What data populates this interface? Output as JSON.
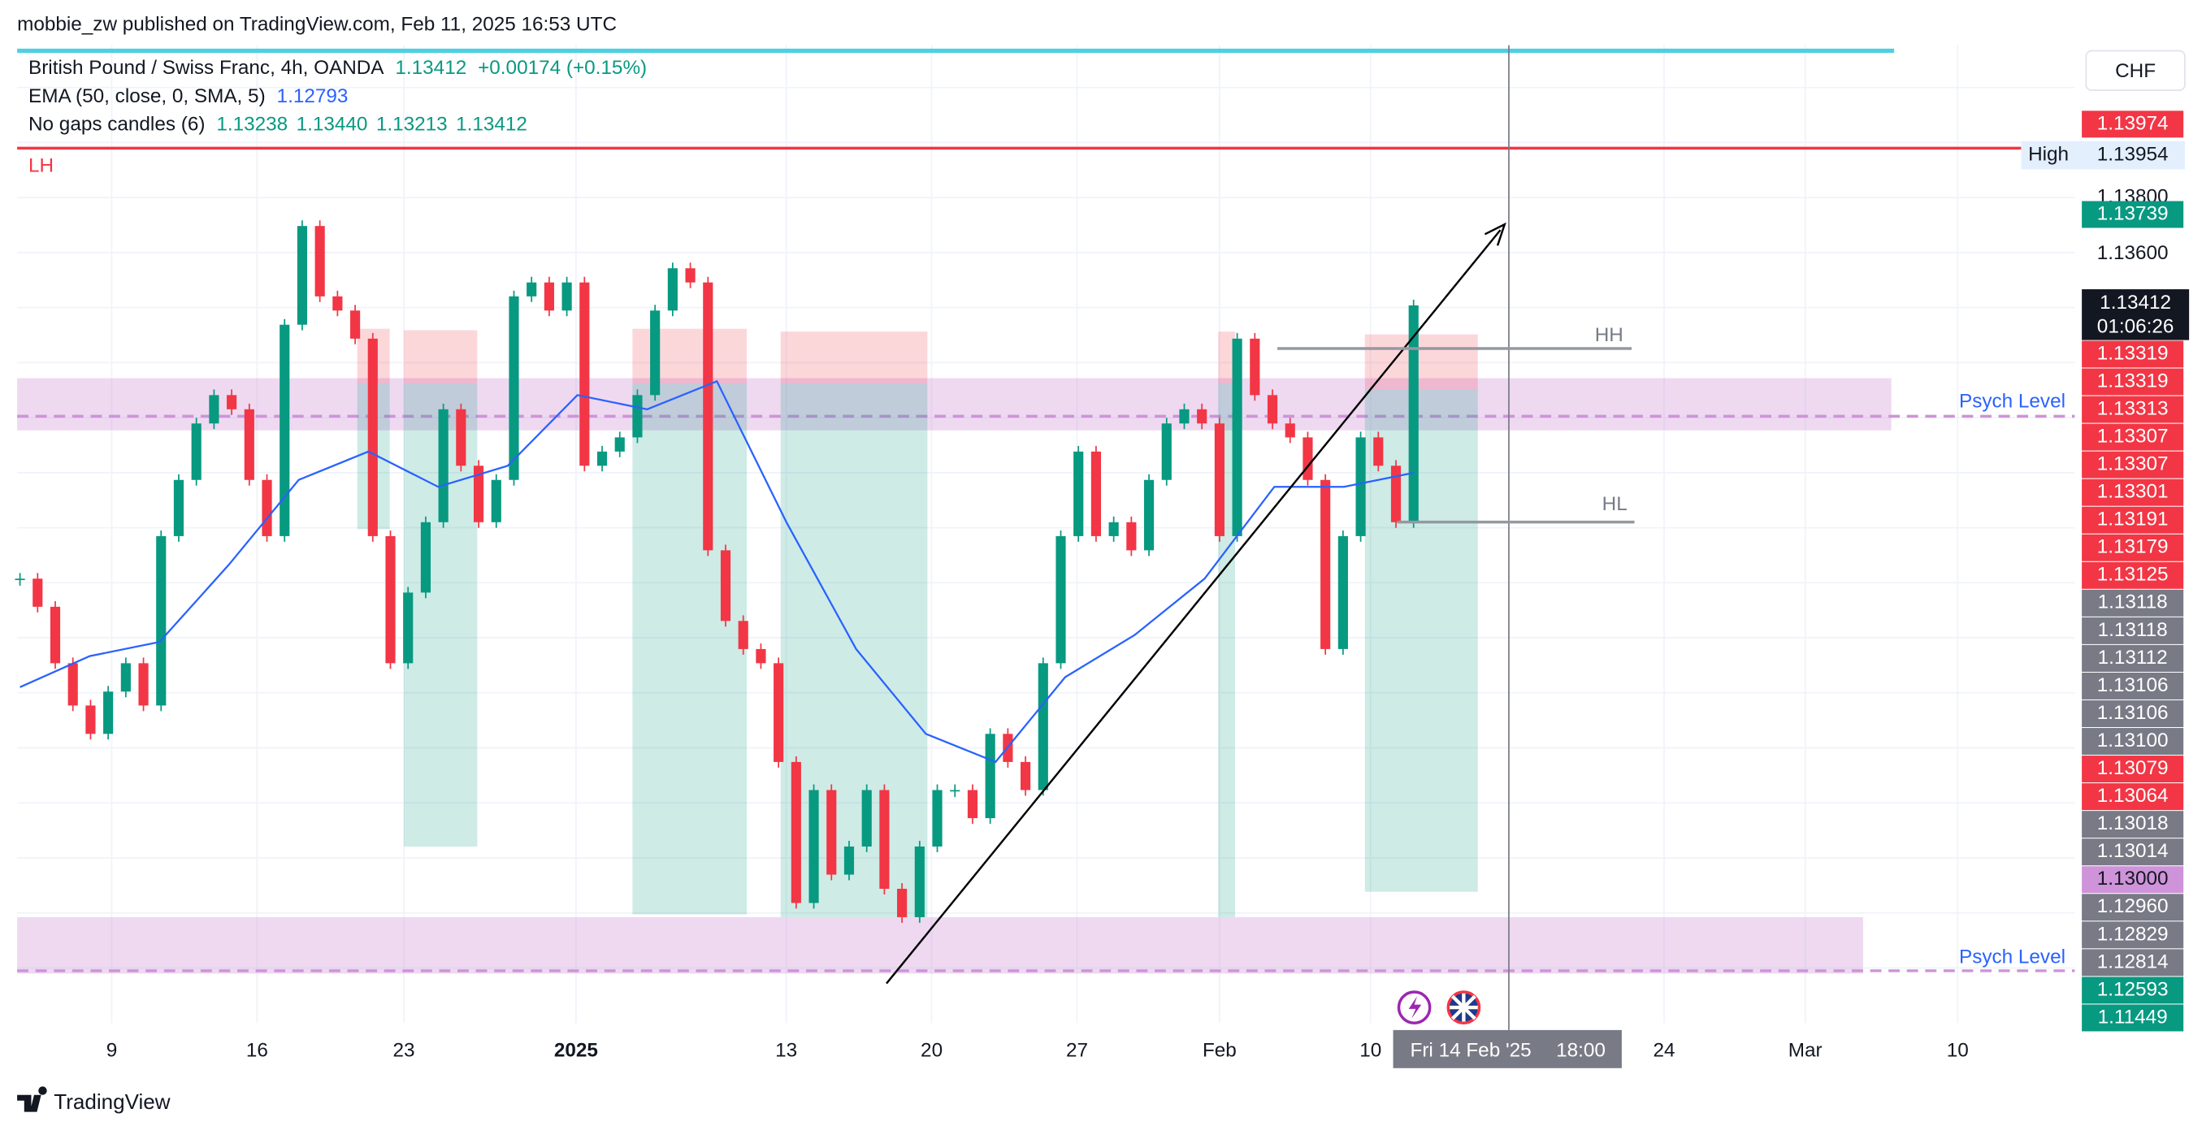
{
  "header": {
    "published": "mobbie_zw published on TradingView.com, Feb 11, 2025 16:53 UTC"
  },
  "legend": {
    "symbol": "British Pound / Swiss Franc, 4h, OANDA",
    "price": "1.13412",
    "change": "+0.00174 (+0.15%)",
    "ema_name": "EMA (50, close, 0, SMA, 5)",
    "ema_value": "1.12793",
    "candles_name": "No gaps candles (6)",
    "candles_values": [
      "1.13238",
      "1.13440",
      "1.13213",
      "1.13412"
    ]
  },
  "currency": "CHF",
  "annotations": {
    "lh": "LH",
    "hh": "HH",
    "hl": "HL",
    "psych_upper": "Psych Level",
    "psych_lower": "Psych Level"
  },
  "chart_data": {
    "type": "candlestick",
    "ylim": [
      1.10781,
      1.14366
    ],
    "up_color": "#089981",
    "down_color": "#f23645",
    "closes": [
      1.1241,
      1.12307,
      1.121,
      1.11945,
      1.11841,
      1.11996,
      1.121,
      1.11945,
      1.12566,
      1.12772,
      1.12979,
      1.13083,
      1.13031,
      1.12772,
      1.12566,
      1.13341,
      1.13703,
      1.13445,
      1.13393,
      1.1329,
      1.12566,
      1.121,
      1.12359,
      1.12617,
      1.13031,
      1.12824,
      1.12617,
      1.12772,
      1.13445,
      1.13496,
      1.13393,
      1.13496,
      1.12824,
      1.12876,
      1.12928,
      1.13083,
      1.13393,
      1.13548,
      1.13496,
      1.12514,
      1.12255,
      1.12152,
      1.121,
      1.11738,
      1.11221,
      1.11635,
      1.11325,
      1.11428,
      1.11635,
      1.11273,
      1.11169,
      1.11428,
      1.11635,
      1.11635,
      1.11532,
      1.11841,
      1.11738,
      1.11635,
      1.121,
      1.12566,
      1.12876,
      1.12566,
      1.12617,
      1.12514,
      1.12772,
      1.12979,
      1.13031,
      1.12979,
      1.12566,
      1.1329,
      1.13083,
      1.12979,
      1.12928,
      1.12772,
      1.12152,
      1.12566,
      1.12928,
      1.12824,
      1.12617,
      1.13412
    ],
    "ema": {
      "color": "#2962ff",
      "values": [
        1.12012,
        1.12126,
        1.12178,
        1.12462,
        1.12772,
        1.12876,
        1.12747,
        1.12824,
        1.13083,
        1.13031,
        1.13134,
        1.12617,
        1.12152,
        1.11841,
        1.11738,
        1.12049,
        1.12204,
        1.1241,
        1.12747,
        1.12747,
        1.12798
      ]
    },
    "yticks": [
      "1.13800",
      "1.13600"
    ],
    "xlabels": [
      "9",
      "16",
      "23",
      "2025",
      "13",
      "20",
      "27",
      "Feb",
      "10",
      "24",
      "Mar",
      "10"
    ]
  },
  "price_scale": {
    "top": {
      "label": "1.13974",
      "color": "#f23645"
    },
    "high": {
      "name": "High",
      "label": "1.13954"
    },
    "teal_top": {
      "label": "1.13739",
      "color": "#089981"
    },
    "last": {
      "label": "1.13412",
      "countdown": "01:06:26"
    },
    "stack": [
      {
        "label": "1.13319",
        "color": "#f23645"
      },
      {
        "label": "1.13319",
        "color": "#f23645"
      },
      {
        "label": "1.13313",
        "color": "#f23645"
      },
      {
        "label": "1.13307",
        "color": "#f23645"
      },
      {
        "label": "1.13307",
        "color": "#f23645"
      },
      {
        "label": "1.13301",
        "color": "#f23645"
      },
      {
        "label": "1.13191",
        "color": "#f23645"
      },
      {
        "label": "1.13179",
        "color": "#f23645"
      },
      {
        "label": "1.13125",
        "color": "#f23645"
      },
      {
        "label": "1.13118",
        "color": "#787b86"
      },
      {
        "label": "1.13118",
        "color": "#787b86"
      },
      {
        "label": "1.13112",
        "color": "#787b86"
      },
      {
        "label": "1.13106",
        "color": "#787b86"
      },
      {
        "label": "1.13106",
        "color": "#787b86"
      },
      {
        "label": "1.13100",
        "color": "#787b86"
      },
      {
        "label": "1.13079",
        "color": "#f23645"
      },
      {
        "label": "1.13064",
        "color": "#f23645"
      },
      {
        "label": "1.13018",
        "color": "#787b86"
      },
      {
        "label": "1.13014",
        "color": "#787b86"
      },
      {
        "label": "1.13000",
        "color": "#ce93d8"
      },
      {
        "label": "1.12960",
        "color": "#787b86"
      },
      {
        "label": "1.12829",
        "color": "#787b86"
      },
      {
        "label": "1.12814",
        "color": "#787b86"
      },
      {
        "label": "1.12593",
        "color": "#089981"
      },
      {
        "label": "1.11449",
        "color": "#089981"
      }
    ]
  },
  "crosshair": {
    "date": "Fri 14 Feb '25",
    "time": "18:00"
  },
  "footer": {
    "brand": "TradingView"
  }
}
